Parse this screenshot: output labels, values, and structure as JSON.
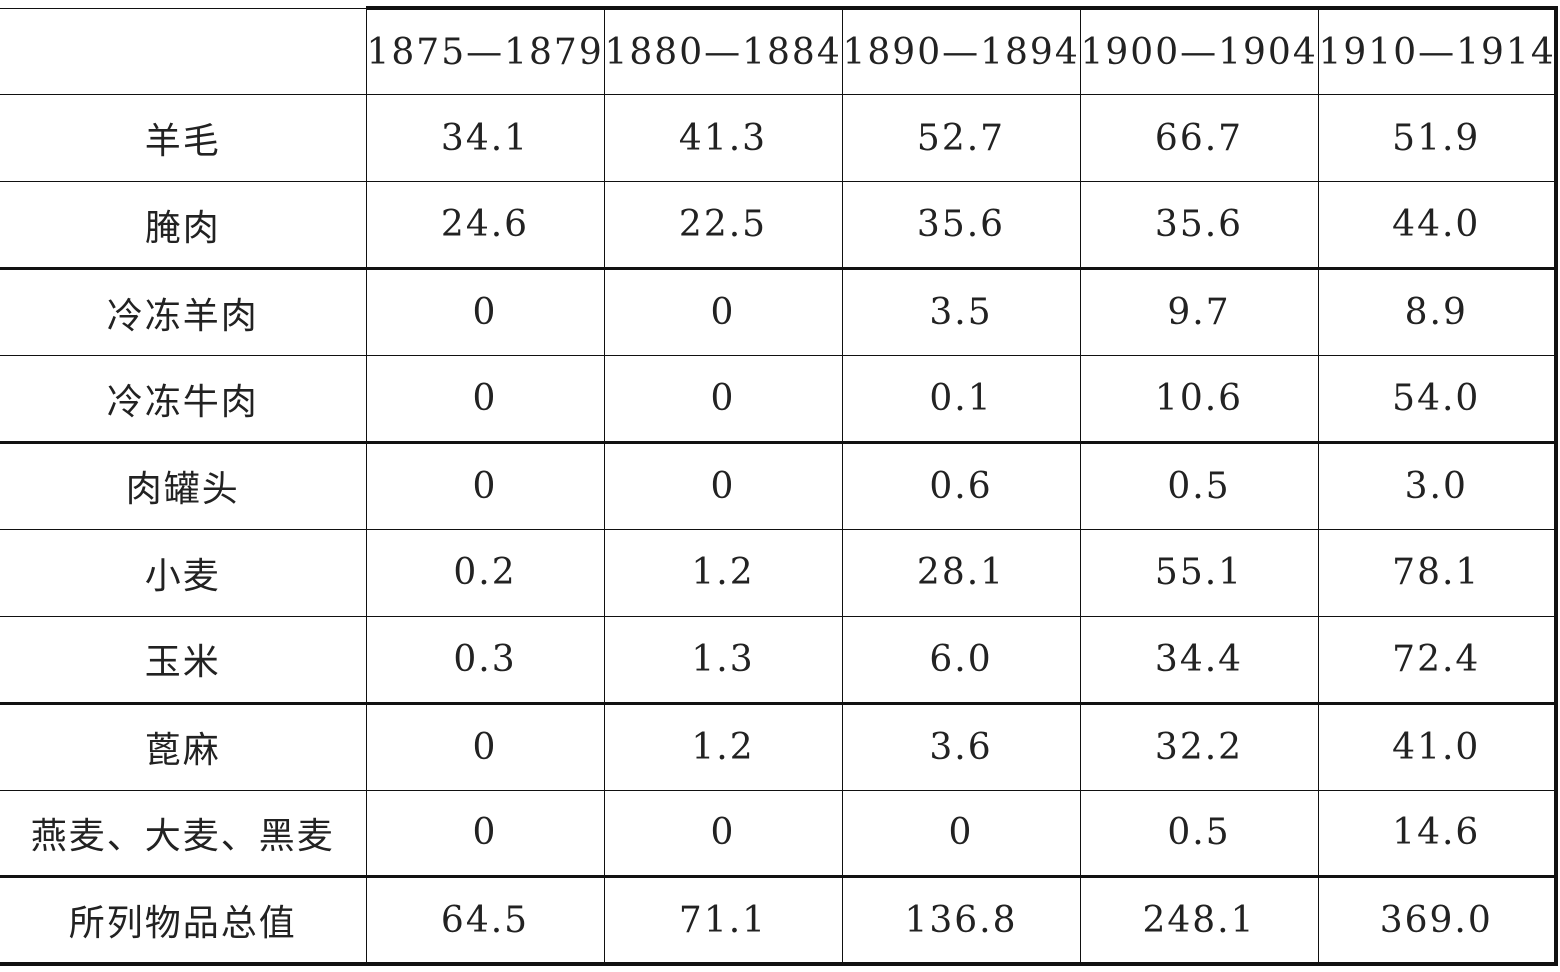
{
  "table": {
    "headers": [
      "",
      "1875—1879",
      "1880—1884",
      "1890—1894",
      "1900—1904",
      "1910—1914"
    ],
    "rows": [
      {
        "label": "羊毛",
        "values": [
          "34.1",
          "41.3",
          "52.7",
          "66.7",
          "51.9"
        ]
      },
      {
        "label": "腌肉",
        "values": [
          "24.6",
          "22.5",
          "35.6",
          "35.6",
          "44.0"
        ]
      },
      {
        "label": "冷冻羊肉",
        "values": [
          "0",
          "0",
          "3.5",
          "9.7",
          "8.9"
        ]
      },
      {
        "label": "冷冻牛肉",
        "values": [
          "0",
          "0",
          "0.1",
          "10.6",
          "54.0"
        ]
      },
      {
        "label": "肉罐头",
        "values": [
          "0",
          "0",
          "0.6",
          "0.5",
          "3.0"
        ]
      },
      {
        "label": "小麦",
        "values": [
          "0.2",
          "1.2",
          "28.1",
          "55.1",
          "78.1"
        ]
      },
      {
        "label": "玉米",
        "values": [
          "0.3",
          "1.3",
          "6.0",
          "34.4",
          "72.4"
        ]
      },
      {
        "label": "蓖麻",
        "values": [
          "0",
          "1.2",
          "3.6",
          "32.2",
          "41.0"
        ]
      },
      {
        "label": "燕麦、大麦、黑麦",
        "values": [
          "0",
          "0",
          "0",
          "0.5",
          "14.6"
        ]
      },
      {
        "label": "所列物品总值",
        "values": [
          "64.5",
          "71.1",
          "136.8",
          "248.1",
          "369.0"
        ]
      }
    ]
  }
}
